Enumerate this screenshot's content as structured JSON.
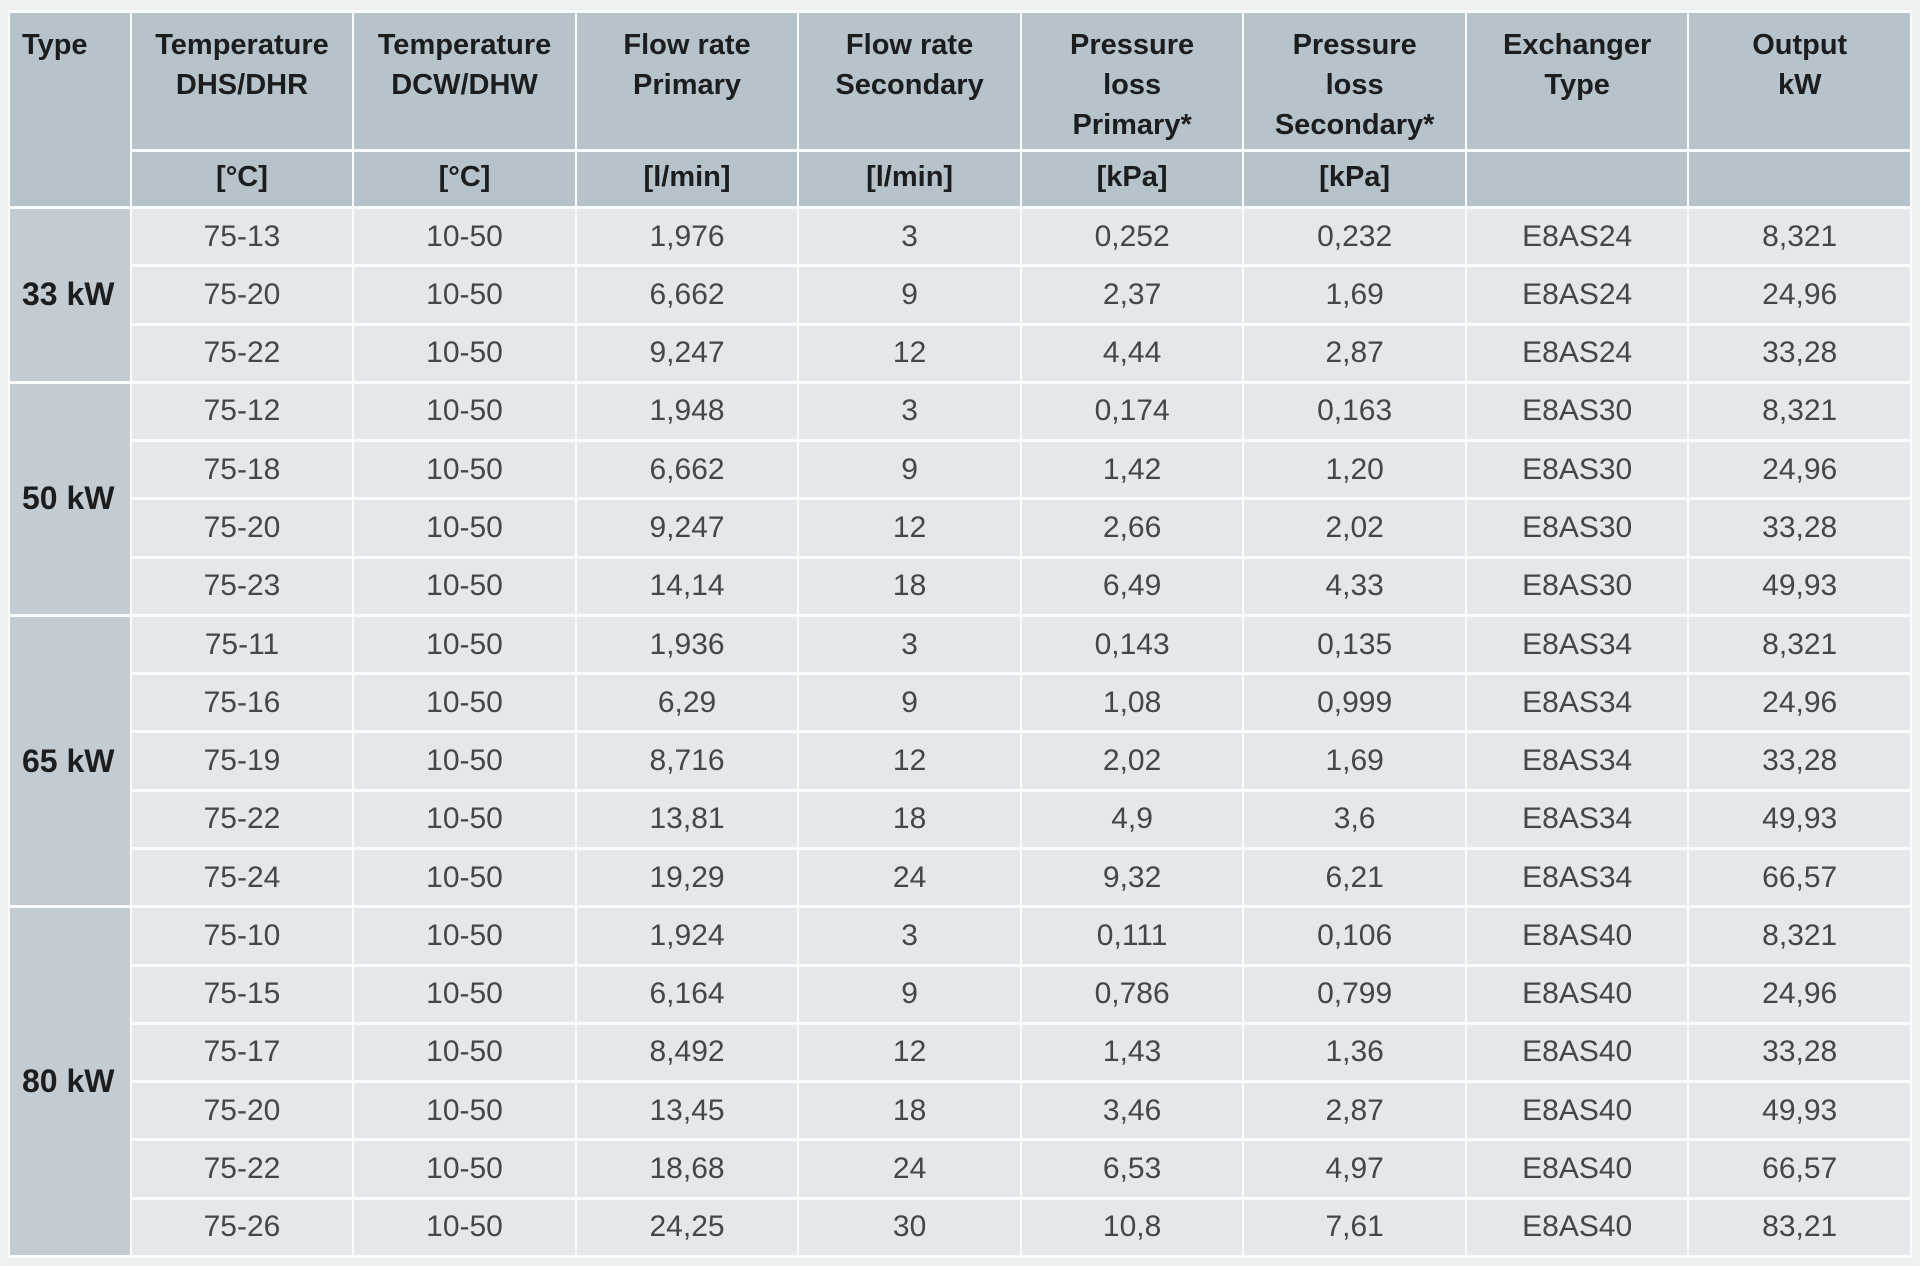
{
  "table": {
    "header": {
      "type_label": "Type",
      "columns": [
        {
          "key": "temperature-dhs-dhr",
          "label": "Temperature\nDHS/DHR",
          "unit": "[°C]"
        },
        {
          "key": "temperature-dcw-dhw",
          "label": "Temperature\nDCW/DHW",
          "unit": "[°C]"
        },
        {
          "key": "flow-rate-primary",
          "label": "Flow rate\nPrimary",
          "unit": "[l/min]"
        },
        {
          "key": "flow-rate-secondary",
          "label": "Flow rate\nSecondary",
          "unit": "[l/min]"
        },
        {
          "key": "pressure-loss-primary",
          "label": "Pressure\nloss\nPrimary*",
          "unit": "[kPa]"
        },
        {
          "key": "pressure-loss-secondary",
          "label": "Pressure\nloss\nSecondary*",
          "unit": "[kPa]"
        },
        {
          "key": "exchanger-type",
          "label": "Exchanger\nType",
          "unit": ""
        },
        {
          "key": "output-kw",
          "label": "Output\nkW",
          "unit": ""
        }
      ]
    },
    "groups": [
      {
        "type": "33 kW",
        "rows": [
          [
            "75-13",
            "10-50",
            "1,976",
            "3",
            "0,252",
            "0,232",
            "E8AS24",
            "8,321"
          ],
          [
            "75-20",
            "10-50",
            "6,662",
            "9",
            "2,37",
            "1,69",
            "E8AS24",
            "24,96"
          ],
          [
            "75-22",
            "10-50",
            "9,247",
            "12",
            "4,44",
            "2,87",
            "E8AS24",
            "33,28"
          ]
        ]
      },
      {
        "type": "50 kW",
        "rows": [
          [
            "75-12",
            "10-50",
            "1,948",
            "3",
            "0,174",
            "0,163",
            "E8AS30",
            "8,321"
          ],
          [
            "75-18",
            "10-50",
            "6,662",
            "9",
            "1,42",
            "1,20",
            "E8AS30",
            "24,96"
          ],
          [
            "75-20",
            "10-50",
            "9,247",
            "12",
            "2,66",
            "2,02",
            "E8AS30",
            "33,28"
          ],
          [
            "75-23",
            "10-50",
            "14,14",
            "18",
            "6,49",
            "4,33",
            "E8AS30",
            "49,93"
          ]
        ]
      },
      {
        "type": "65 kW",
        "rows": [
          [
            "75-11",
            "10-50",
            "1,936",
            "3",
            "0,143",
            "0,135",
            "E8AS34",
            "8,321"
          ],
          [
            "75-16",
            "10-50",
            "6,29",
            "9",
            "1,08",
            "0,999",
            "E8AS34",
            "24,96"
          ],
          [
            "75-19",
            "10-50",
            "8,716",
            "12",
            "2,02",
            "1,69",
            "E8AS34",
            "33,28"
          ],
          [
            "75-22",
            "10-50",
            "13,81",
            "18",
            "4,9",
            "3,6",
            "E8AS34",
            "49,93"
          ],
          [
            "75-24",
            "10-50",
            "19,29",
            "24",
            "9,32",
            "6,21",
            "E8AS34",
            "66,57"
          ]
        ]
      },
      {
        "type": "80 kW",
        "rows": [
          [
            "75-10",
            "10-50",
            "1,924",
            "3",
            "0,111",
            "0,106",
            "E8AS40",
            "8,321"
          ],
          [
            "75-15",
            "10-50",
            "6,164",
            "9",
            "0,786",
            "0,799",
            "E8AS40",
            "24,96"
          ],
          [
            "75-17",
            "10-50",
            "8,492",
            "12",
            "1,43",
            "1,36",
            "E8AS40",
            "33,28"
          ],
          [
            "75-20",
            "10-50",
            "13,45",
            "18",
            "3,46",
            "2,87",
            "E8AS40",
            "49,93"
          ],
          [
            "75-22",
            "10-50",
            "18,68",
            "24",
            "6,53",
            "4,97",
            "E8AS40",
            "66,57"
          ],
          [
            "75-26",
            "10-50",
            "24,25",
            "30",
            "10,8",
            "7,61",
            "E8AS40",
            "83,21"
          ]
        ]
      }
    ]
  },
  "colors": {
    "page_bg": "#edf0f1",
    "header_bg": "#b7c3cb",
    "group_cell_bg": "#c3ccd3",
    "data_cell_bg": "#e4e8eb",
    "grid_line": "#fafbfb",
    "header_text": "#1c1d1e",
    "data_text": "#42474b"
  }
}
